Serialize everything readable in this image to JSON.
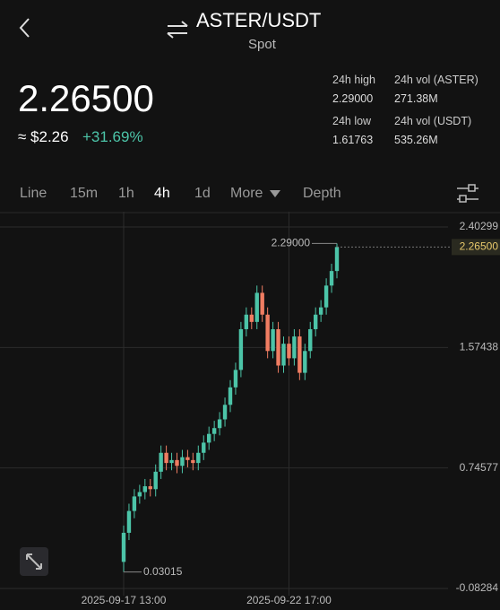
{
  "header": {
    "pair": "ASTER/USDT",
    "market": "Spot"
  },
  "price": {
    "last": "2.26500",
    "approx": "≈ $2.26",
    "change": "+31.69%"
  },
  "stats": [
    {
      "label": "24h high",
      "value": "2.29000"
    },
    {
      "label": "24h vol (ASTER)",
      "value": "271.38M"
    },
    {
      "label": "24h low",
      "value": "1.61763"
    },
    {
      "label": "24h vol (USDT)",
      "value": "535.26M"
    }
  ],
  "tabs": [
    "Line",
    "15m",
    "1h",
    "4h",
    "1d",
    "More",
    "Depth"
  ],
  "active_tab": 3,
  "chart_data": {
    "type": "candlestick",
    "categories": [
      "2025-09-17 13:00",
      null,
      null,
      null,
      null,
      null,
      null,
      null,
      null,
      null,
      null,
      null,
      null,
      null,
      null,
      null,
      null,
      null,
      null,
      null,
      null,
      null,
      null,
      null,
      null,
      null,
      null,
      null,
      null,
      null,
      null,
      "2025-09-22 17:00",
      null,
      null,
      null,
      null,
      null,
      null,
      null,
      null,
      null
    ],
    "open": [
      0.1,
      0.3,
      0.45,
      0.55,
      0.58,
      0.62,
      0.6,
      0.72,
      0.85,
      0.78,
      0.8,
      0.76,
      0.82,
      0.8,
      0.78,
      0.85,
      0.92,
      0.98,
      1.02,
      1.08,
      1.18,
      1.3,
      1.42,
      1.7,
      1.8,
      1.75,
      1.95,
      1.8,
      1.55,
      1.7,
      1.45,
      1.6,
      1.5,
      1.65,
      1.4,
      1.55,
      1.7,
      1.8,
      1.85,
      2.0,
      2.1
    ],
    "high": [
      0.35,
      0.5,
      0.6,
      0.63,
      0.67,
      0.67,
      0.77,
      0.9,
      0.9,
      0.85,
      0.85,
      0.87,
      0.87,
      0.85,
      0.9,
      0.97,
      1.03,
      1.07,
      1.13,
      1.23,
      1.35,
      1.47,
      1.75,
      1.85,
      1.85,
      2.0,
      2.0,
      1.85,
      1.75,
      1.75,
      1.65,
      1.65,
      1.7,
      1.7,
      1.6,
      1.75,
      1.85,
      1.9,
      2.05,
      2.15,
      2.29
    ],
    "low": [
      0.03015,
      0.25,
      0.4,
      0.5,
      0.53,
      0.55,
      0.55,
      0.67,
      0.73,
      0.73,
      0.71,
      0.71,
      0.75,
      0.73,
      0.73,
      0.8,
      0.87,
      0.93,
      0.97,
      1.03,
      1.13,
      1.25,
      1.37,
      1.65,
      1.7,
      1.7,
      1.75,
      1.5,
      1.5,
      1.4,
      1.4,
      1.45,
      1.45,
      1.35,
      1.35,
      1.5,
      1.65,
      1.75,
      1.8,
      1.95,
      2.05
    ],
    "close": [
      0.3,
      0.45,
      0.55,
      0.58,
      0.62,
      0.6,
      0.72,
      0.85,
      0.78,
      0.8,
      0.76,
      0.82,
      0.8,
      0.78,
      0.85,
      0.92,
      0.98,
      1.02,
      1.08,
      1.18,
      1.3,
      1.42,
      1.7,
      1.8,
      1.75,
      1.95,
      1.8,
      1.55,
      1.7,
      1.45,
      1.6,
      1.5,
      1.65,
      1.4,
      1.55,
      1.7,
      1.8,
      1.85,
      2.0,
      2.1,
      2.265
    ],
    "up_color": "#4cc4a8",
    "down_color": "#f07d62",
    "ylim": [
      -0.08284,
      2.40299
    ],
    "yticks": [
      -0.08284,
      0.74577,
      1.57438,
      2.40299
    ],
    "max_marker": {
      "value": 2.29,
      "label": "2.29000"
    },
    "min_marker": {
      "value": 0.03015,
      "label": "0.03015"
    },
    "last_price": {
      "value": 2.265,
      "label": "2.26500"
    },
    "grid": true
  }
}
